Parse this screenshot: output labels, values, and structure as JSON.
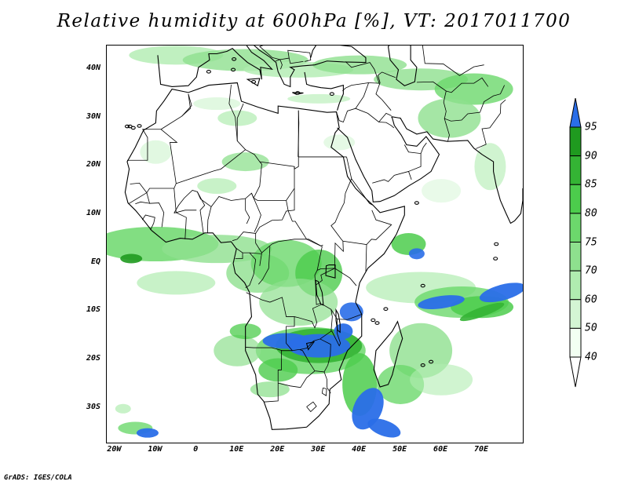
{
  "title": "Relative humidity at 600hPa [%], VT: 2017011700",
  "credit": "GrADS: IGES/COLA",
  "lat_labels": [
    {
      "label": "40N",
      "value": 40
    },
    {
      "label": "30N",
      "value": 30
    },
    {
      "label": "20N",
      "value": 20
    },
    {
      "label": "10N",
      "value": 10
    },
    {
      "label": "EQ",
      "value": 0
    },
    {
      "label": "10S",
      "value": -10
    },
    {
      "label": "20S",
      "value": -20
    },
    {
      "label": "30S",
      "value": -30
    }
  ],
  "lon_labels": [
    {
      "label": "20W",
      "value": -20
    },
    {
      "label": "10W",
      "value": -10
    },
    {
      "label": "0",
      "value": 0
    },
    {
      "label": "10E",
      "value": 10
    },
    {
      "label": "20E",
      "value": 20
    },
    {
      "label": "30E",
      "value": 30
    },
    {
      "label": "40E",
      "value": 40
    },
    {
      "label": "50E",
      "value": 50
    },
    {
      "label": "60E",
      "value": 60
    },
    {
      "label": "70E",
      "value": 70
    }
  ],
  "map_extent": {
    "lon_min": -22,
    "lon_max": 80,
    "lat_min": -37,
    "lat_max": 45
  },
  "colorbar": {
    "levels": [
      "40",
      "50",
      "60",
      "70",
      "75",
      "80",
      "85",
      "90",
      "95"
    ],
    "colors": [
      "#f2fff2",
      "#d4f5d4",
      "#b0ecb0",
      "#8ee08e",
      "#6cd86c",
      "#4ccc4c",
      "#34b434",
      "#1f9a1f",
      "#2a6ee8"
    ]
  }
}
